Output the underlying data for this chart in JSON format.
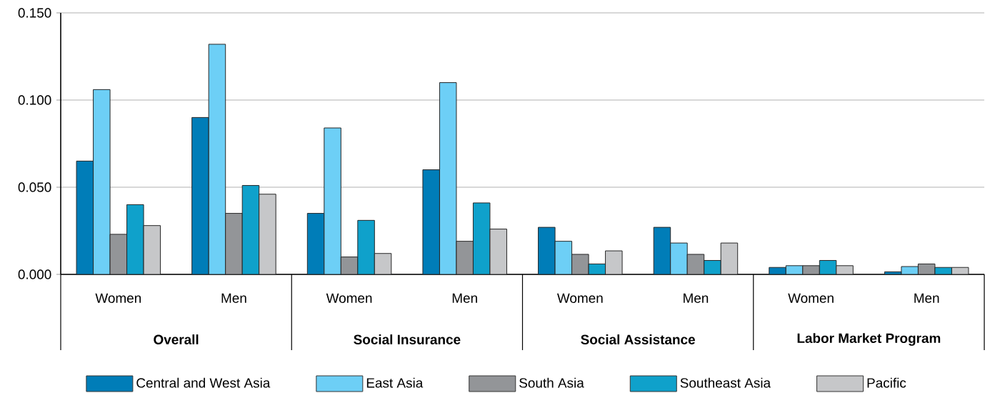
{
  "chart_data": {
    "type": "bar",
    "categories": [
      "Women",
      "Men",
      "Women",
      "Men",
      "Women",
      "Men",
      "Women",
      "Men"
    ],
    "annotations": [
      "Overall",
      "Social Insurance",
      "Social Assistance",
      "Labor Market Program"
    ],
    "series": [
      {
        "name": "Central and West Asia",
        "color": "#007db8",
        "values": [
          0.065,
          0.09,
          0.035,
          0.06,
          0.027,
          0.027,
          0.004,
          0.0015
        ]
      },
      {
        "name": "East Asia",
        "color": "#6dcff6",
        "values": [
          0.106,
          0.132,
          0.084,
          0.11,
          0.019,
          0.018,
          0.005,
          0.0045
        ]
      },
      {
        "name": "South Asia",
        "color": "#939598",
        "values": [
          0.023,
          0.035,
          0.01,
          0.019,
          0.0115,
          0.0115,
          0.005,
          0.006
        ]
      },
      {
        "name": "Southeast Asia",
        "color": "#0fa1cb",
        "values": [
          0.04,
          0.051,
          0.031,
          0.041,
          0.006,
          0.008,
          0.008,
          0.004
        ]
      },
      {
        "name": "Pacific",
        "color": "#c6c7c9",
        "values": [
          0.028,
          0.046,
          0.012,
          0.026,
          0.0135,
          0.018,
          0.005,
          0.004
        ]
      }
    ],
    "ylim": [
      0,
      0.15
    ],
    "yticks": [
      {
        "value": 0,
        "label": "0.000"
      },
      {
        "value": 0.05,
        "label": "0.050"
      },
      {
        "value": 0.1,
        "label": "0.100"
      },
      {
        "value": 0.15,
        "label": "0.150"
      }
    ],
    "grid": "y",
    "legend": "bottom"
  }
}
